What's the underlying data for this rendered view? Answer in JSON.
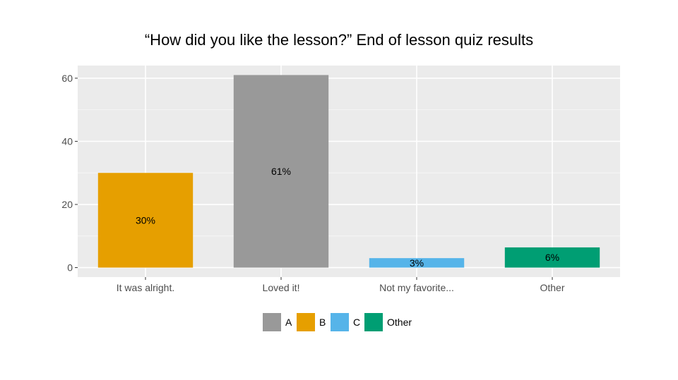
{
  "chart_data": {
    "type": "bar",
    "title": "“How did you like the lesson?” End of lesson quiz results",
    "xlabel": "",
    "ylabel": "",
    "categories": [
      "It was alright.",
      "Loved it!",
      "Not my favorite...",
      "Other"
    ],
    "values": [
      30,
      61,
      3,
      6.4
    ],
    "data_labels": [
      "30%",
      "61%",
      "3%",
      "6%"
    ],
    "bar_groups": [
      "B",
      "A",
      "C",
      "Other"
    ],
    "ylim": [
      -3,
      64
    ],
    "yticks": [
      0,
      20,
      40,
      60
    ],
    "grid": true,
    "legend": {
      "placement": "bottom",
      "entries": [
        {
          "label": "A",
          "color": "#999999"
        },
        {
          "label": "B",
          "color": "#E69F00"
        },
        {
          "label": "C",
          "color": "#56B4E9"
        },
        {
          "label": "Other",
          "color": "#009E73"
        }
      ]
    }
  }
}
